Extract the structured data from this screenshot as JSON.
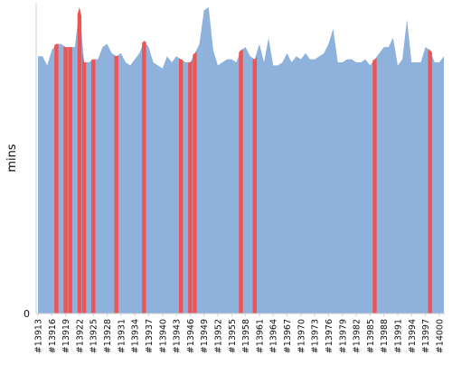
{
  "chart_data": {
    "type": "area",
    "title": "",
    "xlabel": "",
    "ylabel": "mins",
    "ylim": [
      0,
      100
    ],
    "yticks": [
      "0"
    ],
    "grid": false,
    "legend": "none",
    "colors": {
      "base": "#8eb2dc",
      "highlight": "#ef5454"
    },
    "x_tick_labels": [
      "#13913",
      "#13916",
      "#13919",
      "#13922",
      "#13925",
      "#13928",
      "#13931",
      "#13934",
      "#13937",
      "#13940",
      "#13943",
      "#13946",
      "#13949",
      "#13952",
      "#13955",
      "#13958",
      "#13961",
      "#13964",
      "#13967",
      "#13970",
      "#13973",
      "#13976",
      "#13979",
      "#13982",
      "#13985",
      "#13988",
      "#13991",
      "#13994",
      "#13997",
      "#14000"
    ],
    "x": [
      13913,
      13914,
      13915,
      13916,
      13917,
      13918,
      13919,
      13920,
      13921,
      13922,
      13923,
      13924,
      13925,
      13926,
      13927,
      13928,
      13929,
      13930,
      13931,
      13932,
      13933,
      13934,
      13935,
      13936,
      13937,
      13938,
      13939,
      13940,
      13941,
      13942,
      13943,
      13944,
      13945,
      13946,
      13947,
      13948,
      13949,
      13950,
      13951,
      13952,
      13953,
      13954,
      13955,
      13956,
      13957,
      13958,
      13959,
      13960,
      13961,
      13962,
      13963,
      13964,
      13965,
      13966,
      13967,
      13968,
      13969,
      13970,
      13971,
      13972,
      13973,
      13974,
      13975,
      13976,
      13977,
      13978,
      13979,
      13980,
      13981,
      13982,
      13983,
      13984,
      13985,
      13986,
      13987,
      13988,
      13989,
      13990,
      13991,
      13992,
      13993,
      13994,
      13995,
      13996,
      13997,
      13998,
      13999,
      14000,
      14001
    ],
    "series": [
      {
        "values": [
          84,
          84,
          81,
          86,
          88,
          88,
          87,
          87,
          87,
          100,
          82,
          82,
          83,
          83,
          87,
          88,
          85,
          84,
          85,
          82,
          81,
          83,
          85,
          89,
          87,
          82,
          81,
          80,
          84,
          82,
          84,
          83,
          82,
          82,
          85,
          88,
          99,
          100,
          86,
          81,
          82,
          83,
          83,
          82,
          86,
          87,
          84,
          83,
          88,
          82,
          90,
          81,
          81,
          82,
          85,
          82,
          84,
          83,
          85,
          83,
          83,
          84,
          85,
          88,
          93,
          82,
          82,
          83,
          83,
          82,
          82,
          83,
          81,
          83,
          85,
          87,
          87,
          90,
          81,
          83,
          96,
          82,
          82,
          82,
          87,
          86,
          82,
          82,
          84
        ]
      }
    ],
    "highlight_indices": [
      4,
      6,
      7,
      9,
      10,
      12,
      17,
      23,
      31,
      33,
      34,
      44,
      47,
      73,
      85
    ]
  }
}
